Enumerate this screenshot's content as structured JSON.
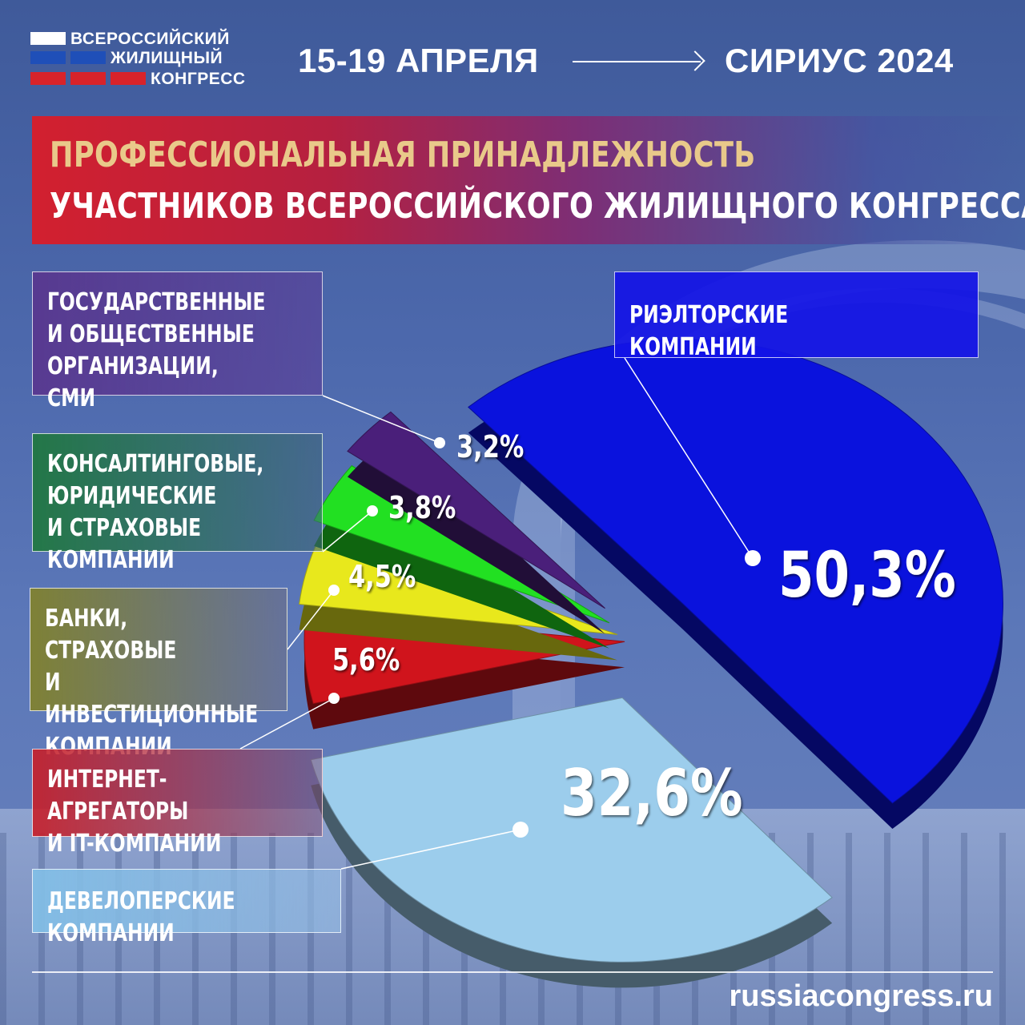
{
  "logo": {
    "line1": "ВСЕРОССИЙСКИЙ",
    "line2": "ЖИЛИЩНЫЙ",
    "line3": "КОНГРЕСС",
    "flag_colors": [
      "#ffffff",
      "#1f4fb8",
      "#d8232a"
    ]
  },
  "header": {
    "dates": "15-19 АПРЕЛЯ",
    "place": "СИРИУС 2024"
  },
  "title": {
    "line1": "ПРОФЕССИОНАЛЬНАЯ ПРИНАДЛЕЖНОСТЬ",
    "line2": "УЧАСТНИКОВ ВСЕРОССИЙСКОГО ЖИЛИЩНОГО КОНГРЕССА"
  },
  "chart_data": {
    "type": "pie",
    "title": "ПРОФЕССИОНАЛЬНАЯ ПРИНАДЛЕЖНОСТЬ УЧАСТНИКОВ ВСЕРОССИЙСКОГО ЖИЛИЩНОГО КОНГРЕССА",
    "units": "%",
    "slices": [
      {
        "label": "РИЭЛТОРСКИЕ КОМПАНИИ",
        "value": 50.3,
        "value_label": "50,3%",
        "color": "#0a12dd"
      },
      {
        "label": "ДЕВЕЛОПЕРСКИЕ КОМПАНИИ",
        "value": 32.6,
        "value_label": "32,6%",
        "color": "#9ccdec"
      },
      {
        "label": "ИНТЕРНЕТ-АГРЕГАТОРЫ\nИ IT-КОМПАНИИ",
        "value": 5.6,
        "value_label": "5,6%",
        "color": "#d0141c"
      },
      {
        "label": "БАНКИ, СТРАХОВЫЕ\nИ ИНВЕСТИЦИОННЫЕ\nКОМПАНИИ",
        "value": 4.5,
        "value_label": "4,5%",
        "color": "#e8e81c"
      },
      {
        "label": "КОНСАЛТИНГОВЫЕ,\nЮРИДИЧЕСКИЕ\nИ СТРАХОВЫЕ КОМПАНИИ",
        "value": 3.8,
        "value_label": "3,8%",
        "color": "#22e022"
      },
      {
        "label": "ГОСУДАРСТВЕННЫЕ\nИ ОБЩЕСТВЕННЫЕ\nОРГАНИЗАЦИИ, СМИ",
        "value": 3.2,
        "value_label": "3,2%",
        "color": "#4a1f7a"
      }
    ]
  },
  "footer": {
    "site": "russiacongress.ru"
  }
}
